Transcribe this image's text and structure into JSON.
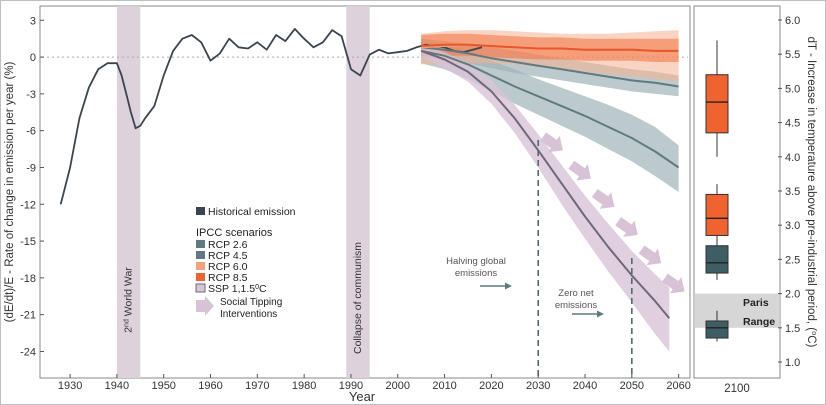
{
  "chart_data": [
    {
      "type": "line",
      "xlabel": "Year",
      "ylabel": "(dE/dt)/E - Rate of change in emission per year (%)",
      "xlim": [
        1924,
        2062
      ],
      "ylim": [
        -26,
        4
      ],
      "x_ticks": [
        "1930",
        "1940",
        "1950",
        "1960",
        "1970",
        "1980",
        "1990",
        "2000",
        "2010",
        "2020",
        "2030",
        "2040",
        "2050",
        "2060"
      ],
      "y_ticks": [
        "3",
        "0",
        "-3",
        "-6",
        "-9",
        "-12",
        "-15",
        "-18",
        "-21",
        "-24"
      ],
      "grid": false,
      "reference_line_y": 0,
      "shaded_periods": [
        {
          "label": "2nd World War",
          "label_main": "2",
          "label_sup": "nd",
          "label_rest": " World War",
          "x_start": 1940,
          "x_end": 1945
        },
        {
          "label": "Collapse of communism",
          "x_start": 1989,
          "x_end": 1994
        }
      ],
      "series": [
        {
          "name": "Historical emission",
          "color": "#3b4550",
          "x": [
            1928,
            1930,
            1932,
            1934,
            1936,
            1938,
            1940,
            1941,
            1942,
            1943,
            1944,
            1945,
            1946,
            1948,
            1950,
            1952,
            1954,
            1956,
            1958,
            1960,
            1962,
            1964,
            1966,
            1968,
            1970,
            1972,
            1974,
            1976,
            1978,
            1980,
            1982,
            1984,
            1986,
            1988,
            1990,
            1992,
            1994,
            1996,
            1998,
            2000,
            2002,
            2004,
            2006,
            2008,
            2010,
            2012,
            2014,
            2016,
            2018
          ],
          "y": [
            -12,
            -9,
            -5,
            -2.5,
            -1,
            -0.5,
            -0.5,
            -1.5,
            -3,
            -4.5,
            -5.8,
            -5.6,
            -5,
            -4,
            -1.5,
            0.5,
            1.5,
            1.8,
            1.2,
            -0.3,
            0.3,
            1.5,
            0.8,
            0.7,
            1.2,
            0.6,
            1.8,
            1.3,
            2.3,
            1.5,
            0.8,
            1.2,
            2.2,
            1.7,
            -1.0,
            -1.5,
            0.2,
            0.6,
            0.3,
            0.4,
            0.5,
            0.8,
            1.0,
            0.9,
            0.8,
            0.5,
            0.4,
            0.6,
            0.8
          ]
        },
        {
          "name": "RCP 2.6",
          "color": "#5f7a80",
          "x": [
            2005,
            2010,
            2015,
            2020,
            2025,
            2030,
            2035,
            2040,
            2045,
            2050,
            2055,
            2060
          ],
          "y": [
            0.5,
            0.1,
            -0.6,
            -1.5,
            -2.4,
            -3.2,
            -4.0,
            -4.8,
            -5.7,
            -6.6,
            -7.7,
            -9.0
          ],
          "band_lower": [
            -0.5,
            -1.0,
            -1.8,
            -2.8,
            -3.8,
            -4.7,
            -5.6,
            -6.5,
            -7.5,
            -8.5,
            -9.7,
            -11.0
          ],
          "band_upper": [
            1.3,
            1.1,
            0.5,
            -0.3,
            -1.0,
            -1.8,
            -2.5,
            -3.2,
            -3.9,
            -4.7,
            -5.7,
            -7.2
          ]
        },
        {
          "name": "RCP 4.5",
          "color": "#5f7a80",
          "x": [
            2005,
            2010,
            2015,
            2020,
            2025,
            2030,
            2035,
            2040,
            2045,
            2050,
            2055,
            2060
          ],
          "y": [
            0.8,
            0.6,
            0.3,
            -0.1,
            -0.4,
            -0.7,
            -1.0,
            -1.3,
            -1.6,
            -1.9,
            -2.1,
            -2.4
          ],
          "band_lower": [
            0.1,
            -0.2,
            -0.5,
            -0.9,
            -1.3,
            -1.6,
            -1.9,
            -2.2,
            -2.5,
            -2.8,
            -3.0,
            -3.2
          ],
          "band_upper": [
            1.5,
            1.3,
            1.1,
            0.8,
            0.5,
            0.2,
            -0.1,
            -0.4,
            -0.7,
            -1.0,
            -1.2,
            -1.5
          ]
        },
        {
          "name": "RCP 6.0",
          "color": "#f4a27c",
          "x": [
            2005,
            2010,
            2015,
            2020,
            2025,
            2030,
            2035,
            2040,
            2045,
            2050,
            2055,
            2060
          ],
          "y": [
            0.8,
            0.9,
            1.0,
            1.0,
            0.9,
            0.8,
            0.7,
            0.6,
            0.5,
            0.4,
            0.3,
            0.2
          ],
          "band_lower": [
            -0.6,
            -0.6,
            -0.5,
            -0.5,
            -0.6,
            -0.8,
            -1.0,
            -1.2,
            -1.4,
            -1.6,
            -1.8,
            -2.0
          ],
          "band_upper": [
            1.9,
            2.1,
            2.2,
            2.2,
            2.1,
            2.0,
            1.9,
            1.9,
            1.9,
            2.0,
            2.1,
            2.2
          ]
        },
        {
          "name": "RCP 8.5",
          "color": "#f0622e",
          "x": [
            2005,
            2010,
            2015,
            2020,
            2025,
            2030,
            2035,
            2040,
            2045,
            2050,
            2055,
            2060
          ],
          "y": [
            0.9,
            1.0,
            1.0,
            0.9,
            0.8,
            0.7,
            0.7,
            0.6,
            0.6,
            0.6,
            0.5,
            0.5
          ],
          "band_lower": [
            0.0,
            0.1,
            0.1,
            0.0,
            -0.1,
            -0.2,
            -0.2,
            -0.3,
            -0.3,
            -0.3,
            -0.4,
            -0.4
          ],
          "band_upper": [
            1.8,
            1.9,
            1.9,
            1.8,
            1.7,
            1.6,
            1.6,
            1.5,
            1.5,
            1.5,
            1.5,
            1.5
          ]
        },
        {
          "name": "SSP 1,1.5°C",
          "label_main": "SSP 1,1.5",
          "label_sup": "0",
          "label_rest": "C",
          "color": "#6f6878",
          "x": [
            2005,
            2010,
            2015,
            2020,
            2025,
            2030,
            2035,
            2040,
            2045,
            2050,
            2055,
            2058
          ],
          "y": [
            0.5,
            -0.2,
            -1.2,
            -2.8,
            -5.0,
            -7.6,
            -10.3,
            -13.0,
            -15.5,
            -17.8,
            -19.9,
            -21.3
          ],
          "band_lower": [
            0.0,
            -0.9,
            -2.0,
            -3.8,
            -6.2,
            -9.0,
            -12.0,
            -14.8,
            -17.5,
            -20.0,
            -22.6,
            -24.0
          ],
          "band_upper": [
            1.0,
            0.4,
            -0.5,
            -1.9,
            -3.9,
            -6.3,
            -8.8,
            -11.3,
            -13.6,
            -15.8,
            -17.7,
            -18.8
          ]
        }
      ],
      "tipping_arrows": {
        "name": "Social Tipping Interventions",
        "color": "#d7c2d6",
        "points": [
          [
            2033,
            -7.0
          ],
          [
            2039,
            -9.3
          ],
          [
            2044,
            -11.6
          ],
          [
            2049,
            -13.9
          ],
          [
            2054,
            -16.2
          ],
          [
            2059,
            -18.5
          ]
        ]
      },
      "annotations": [
        {
          "name": "halving",
          "text_lines": [
            "Halving global",
            "emissions"
          ],
          "target_year": 2030
        },
        {
          "name": "zero-net",
          "text_lines": [
            "Zero net",
            "emissions"
          ],
          "target_year": 2050
        }
      ],
      "vlines": [
        2030,
        2050
      ]
    },
    {
      "type": "box",
      "xlabel": "2100",
      "ylabel": "dT - Increase in temperature above pre-industrial period, (°C)",
      "ylabel_main": "dT - Increase in temperature above pre-industrial period, (",
      "ylabel_sup": "o",
      "ylabel_end": "C)",
      "ylim": [
        0.9,
        6.2
      ],
      "y_ticks": [
        "6.0",
        "5.5",
        "5.0",
        "4.5",
        "4.0",
        "3.5",
        "3.0",
        "2.5",
        "2.0",
        "1.5",
        "1.0"
      ],
      "paris_range": {
        "label_lines": [
          "Paris",
          "Range"
        ],
        "low": 1.5,
        "high": 2.0
      },
      "boxes": [
        {
          "name": "RCP 8.5",
          "color": "#f0622e",
          "min": 4.0,
          "q1": 4.35,
          "median": 4.8,
          "q3": 5.2,
          "max": 5.7
        },
        {
          "name": "RCP 6.0",
          "color": "#f0622e",
          "min": 2.6,
          "q1": 2.85,
          "median": 3.1,
          "q3": 3.45,
          "max": 3.6
        },
        {
          "name": "RCP 4.5",
          "color": "#3d5e64",
          "min": 2.2,
          "q1": 2.3,
          "median": 2.45,
          "q3": 2.7,
          "max": 2.85
        },
        {
          "name": "RCP 2.6",
          "color": "#3d5e64",
          "min": 1.3,
          "q1": 1.35,
          "median": 1.5,
          "q3": 1.6,
          "max": 1.75
        }
      ]
    }
  ],
  "legend": {
    "historical": "Historical emission",
    "ipcc_title": "IPCC scenarios",
    "tipping": [
      "Social Tipping",
      "Interventions"
    ]
  }
}
